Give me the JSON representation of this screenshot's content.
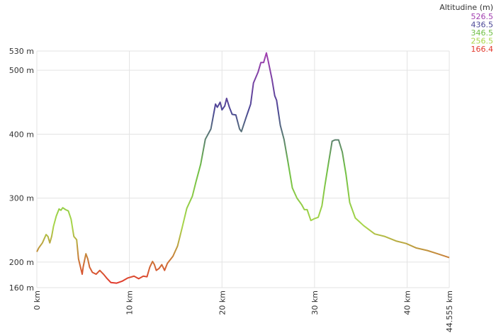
{
  "chart_data": {
    "type": "line",
    "x": [
      0,
      0.2,
      0.6,
      1.0,
      1.2,
      1.4,
      1.6,
      1.8,
      2.1,
      2.4,
      2.6,
      2.8,
      3.1,
      3.4,
      3.7,
      4.0,
      4.3,
      4.5,
      4.9,
      5.0,
      5.3,
      5.5,
      5.7,
      6.0,
      6.4,
      6.8,
      7.2,
      7.6,
      8.0,
      8.6,
      9.2,
      9.8,
      10.5,
      11.0,
      11.5,
      11.9,
      12.2,
      12.5,
      12.7,
      12.9,
      13.2,
      13.5,
      13.8,
      14.1,
      14.7,
      15.2,
      15.7,
      16.2,
      16.8,
      17.2,
      17.7,
      18.2,
      18.8,
      19.3,
      19.5,
      19.8,
      20.0,
      20.3,
      20.5,
      20.8,
      21.1,
      21.5,
      21.9,
      22.1,
      22.6,
      23.1,
      23.4,
      23.9,
      24.2,
      24.5,
      24.8,
      25.0,
      25.4,
      25.7,
      25.9,
      26.3,
      26.7,
      27.1,
      27.6,
      28.1,
      28.6,
      28.9,
      29.2,
      29.6,
      30.0,
      30.4,
      30.8,
      31.1,
      31.5,
      31.9,
      32.2,
      32.6,
      33.0,
      33.4,
      33.8,
      34.4,
      35.3,
      36.5,
      37.6,
      38.8,
      39.9,
      41.0,
      42.2,
      43.3,
      44.555
    ],
    "values": [
      216,
      222,
      230,
      243,
      240,
      230,
      240,
      256,
      272,
      283,
      281,
      285,
      282,
      280,
      267,
      240,
      235,
      205,
      181,
      192,
      213,
      205,
      192,
      184,
      181,
      187,
      181,
      174,
      168,
      167,
      170,
      175,
      178,
      174,
      178,
      177,
      192,
      201,
      196,
      187,
      190,
      196,
      187,
      198,
      209,
      225,
      254,
      284,
      303,
      326,
      353,
      392,
      408,
      447,
      442,
      450,
      438,
      444,
      456,
      442,
      431,
      430,
      408,
      404,
      426,
      447,
      480,
      497,
      512,
      512,
      527,
      514,
      486,
      460,
      453,
      414,
      392,
      359,
      316,
      300,
      290,
      282,
      282,
      265,
      268,
      270,
      288,
      318,
      354,
      389,
      391,
      391,
      372,
      337,
      293,
      269,
      257,
      244,
      240,
      233,
      229,
      222,
      218,
      213,
      207
    ],
    "xlim": [
      0,
      44.555
    ],
    "ylim": [
      160,
      530
    ],
    "xticks": [
      {
        "value": 0,
        "label": "0 km"
      },
      {
        "value": 10,
        "label": "10 km"
      },
      {
        "value": 20,
        "label": "20 km"
      },
      {
        "value": 30,
        "label": "30 km"
      },
      {
        "value": 40,
        "label": "40 km"
      },
      {
        "value": 44.555,
        "label": "44.555 km"
      }
    ],
    "yticks": [
      {
        "value": 160,
        "label": "160 m"
      },
      {
        "value": 200,
        "label": "200 m"
      },
      {
        "value": 300,
        "label": "300 m"
      },
      {
        "value": 400,
        "label": "400 m"
      },
      {
        "value": 500,
        "label": "500 m"
      },
      {
        "value": 530,
        "label": "530 m"
      }
    ],
    "grid": true,
    "color_scale": {
      "title": "Altitudine (m)",
      "stops": [
        {
          "value": 526.5,
          "color": "#a23fb0"
        },
        {
          "value": 436.5,
          "color": "#4b4796"
        },
        {
          "value": 346.5,
          "color": "#6fbf45"
        },
        {
          "value": 256.5,
          "color": "#a9d64a"
        },
        {
          "value": 166.4,
          "color": "#e2382c"
        }
      ]
    }
  }
}
